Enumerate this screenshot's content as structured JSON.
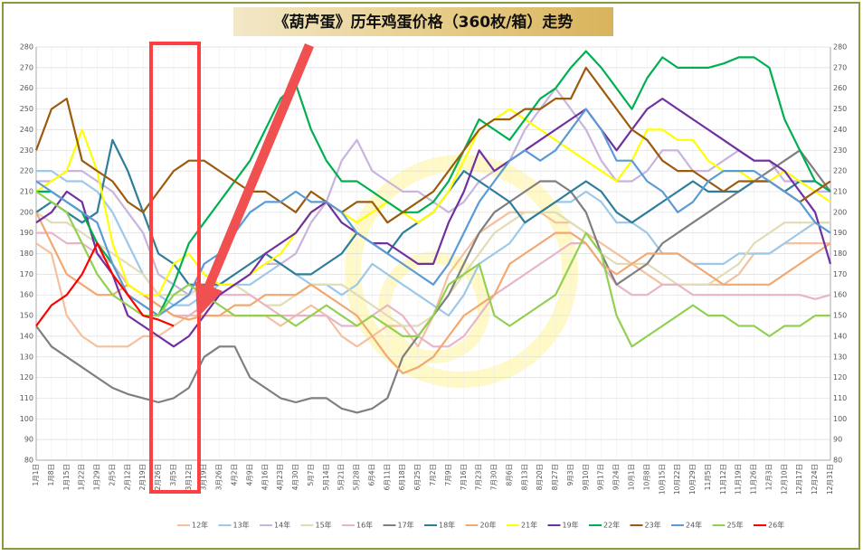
{
  "chart_data": {
    "type": "line",
    "title": "《葫芦蛋》历年鸡蛋价格（360枚/箱）走势",
    "categories": [
      "1月1日",
      "1月8日",
      "1月15日",
      "1月22日",
      "1月29日",
      "2月5日",
      "2月12日",
      "2月19日",
      "2月26日",
      "3月5日",
      "3月12日",
      "3月19日",
      "3月26日",
      "4月2日",
      "4月9日",
      "4月16日",
      "4月23日",
      "4月30日",
      "5月7日",
      "5月14日",
      "5月21日",
      "5月28日",
      "6月4日",
      "6月11日",
      "6月18日",
      "6月25日",
      "7月2日",
      "7月9日",
      "7月16日",
      "7月23日",
      "7月30日",
      "8月6日",
      "8月13日",
      "8月20日",
      "8月27日",
      "9月3日",
      "9月10日",
      "9月17日",
      "9月24日",
      "10月1日",
      "10月8日",
      "10月15日",
      "10月22日",
      "10月29日",
      "11月5日",
      "11月12日",
      "11月19日",
      "11月26日",
      "12月3日",
      "12月10日",
      "12月17日",
      "12月24日",
      "12月31日"
    ],
    "ylim": [
      80,
      280
    ],
    "yticks": [
      80,
      90,
      100,
      110,
      120,
      130,
      140,
      150,
      160,
      170,
      180,
      190,
      200,
      210,
      220,
      230,
      240,
      250,
      260,
      270,
      280
    ],
    "grid": true,
    "series": [
      {
        "name": "12年",
        "color": "#f4c09e",
        "values": [
          185,
          180,
          150,
          140,
          135,
          135,
          135,
          140,
          140,
          145,
          150,
          150,
          150,
          150,
          150,
          150,
          145,
          150,
          155,
          150,
          140,
          135,
          140,
          145,
          145,
          135,
          150,
          170,
          180,
          190,
          195,
          200,
          200,
          200,
          195,
          195,
          190,
          185,
          180,
          175,
          170,
          165,
          165,
          165,
          165,
          165,
          170,
          180,
          180,
          185,
          185,
          185,
          185
        ]
      },
      {
        "name": "13年",
        "color": "#9dc8e8",
        "values": [
          220,
          220,
          215,
          215,
          210,
          200,
          185,
          170,
          160,
          155,
          155,
          160,
          165,
          165,
          165,
          170,
          175,
          170,
          165,
          165,
          160,
          165,
          175,
          170,
          165,
          160,
          155,
          150,
          160,
          175,
          180,
          185,
          195,
          200,
          205,
          205,
          210,
          205,
          195,
          195,
          190,
          180,
          180,
          175,
          175,
          175,
          180,
          180,
          180,
          185,
          190,
          195,
          195
        ]
      },
      {
        "name": "14年",
        "color": "#c8b4dc",
        "values": [
          215,
          215,
          220,
          220,
          215,
          210,
          200,
          190,
          170,
          165,
          160,
          165,
          165,
          165,
          170,
          175,
          175,
          180,
          195,
          205,
          225,
          235,
          220,
          215,
          210,
          210,
          205,
          200,
          205,
          215,
          220,
          225,
          240,
          250,
          260,
          250,
          240,
          225,
          215,
          215,
          220,
          230,
          230,
          220,
          220,
          225,
          230,
          225,
          225,
          215,
          215,
          210,
          210
        ]
      },
      {
        "name": "15年",
        "color": "#e2dcb4",
        "values": [
          200,
          195,
          195,
          190,
          185,
          180,
          175,
          170,
          160,
          160,
          160,
          165,
          165,
          165,
          160,
          155,
          155,
          160,
          165,
          165,
          165,
          160,
          155,
          150,
          145,
          145,
          150,
          160,
          170,
          180,
          190,
          195,
          200,
          200,
          200,
          195,
          190,
          180,
          175,
          175,
          175,
          170,
          165,
          165,
          165,
          170,
          175,
          185,
          190,
          195,
          195,
          195,
          195
        ]
      },
      {
        "name": "16年",
        "color": "#e8b4c8",
        "values": [
          190,
          190,
          185,
          185,
          180,
          175,
          165,
          160,
          155,
          150,
          150,
          155,
          160,
          160,
          160,
          155,
          150,
          150,
          150,
          150,
          145,
          145,
          150,
          155,
          150,
          140,
          135,
          135,
          140,
          150,
          160,
          165,
          170,
          175,
          180,
          185,
          185,
          175,
          165,
          160,
          160,
          165,
          165,
          160,
          160,
          160,
          160,
          160,
          160,
          160,
          160,
          158,
          160
        ]
      },
      {
        "name": "17年",
        "color": "#7f7f7f",
        "values": [
          145,
          135,
          130,
          125,
          120,
          115,
          112,
          110,
          108,
          110,
          115,
          130,
          135,
          135,
          120,
          115,
          110,
          108,
          110,
          110,
          105,
          103,
          105,
          110,
          130,
          140,
          150,
          160,
          175,
          190,
          200,
          205,
          210,
          215,
          215,
          210,
          200,
          180,
          165,
          170,
          175,
          185,
          190,
          195,
          200,
          205,
          210,
          215,
          220,
          225,
          230,
          220,
          210
        ]
      },
      {
        "name": "18年",
        "color": "#2e7d9a",
        "values": [
          200,
          205,
          200,
          195,
          200,
          235,
          220,
          200,
          180,
          175,
          165,
          165,
          165,
          170,
          175,
          180,
          175,
          170,
          170,
          175,
          180,
          190,
          185,
          180,
          190,
          195,
          200,
          210,
          220,
          215,
          210,
          205,
          195,
          200,
          205,
          210,
          215,
          210,
          200,
          195,
          200,
          205,
          210,
          215,
          210,
          210,
          210,
          215,
          215,
          210,
          215,
          215,
          210
        ]
      },
      {
        "name": "20年",
        "color": "#f2a870",
        "values": [
          200,
          185,
          170,
          165,
          160,
          160,
          165,
          160,
          155,
          150,
          148,
          150,
          150,
          155,
          155,
          160,
          160,
          160,
          165,
          160,
          155,
          150,
          140,
          130,
          122,
          125,
          130,
          140,
          150,
          155,
          160,
          175,
          180,
          185,
          190,
          190,
          185,
          175,
          170,
          175,
          180,
          180,
          180,
          175,
          170,
          165,
          165,
          165,
          165,
          170,
          175,
          180,
          185
        ]
      },
      {
        "name": "21年",
        "color": "#ffff00",
        "values": [
          210,
          215,
          220,
          240,
          220,
          185,
          165,
          160,
          160,
          175,
          180,
          170,
          165,
          165,
          170,
          175,
          180,
          190,
          200,
          205,
          200,
          195,
          200,
          205,
          200,
          195,
          200,
          210,
          225,
          240,
          245,
          250,
          245,
          240,
          235,
          230,
          225,
          220,
          215,
          225,
          240,
          240,
          235,
          235,
          225,
          220,
          220,
          215,
          215,
          220,
          215,
          210,
          205
        ]
      },
      {
        "name": "19年",
        "color": "#7030a0",
        "values": [
          195,
          200,
          210,
          205,
          180,
          170,
          150,
          145,
          140,
          135,
          140,
          150,
          160,
          165,
          170,
          180,
          185,
          190,
          200,
          205,
          195,
          190,
          185,
          185,
          180,
          175,
          175,
          195,
          210,
          230,
          220,
          225,
          230,
          235,
          240,
          245,
          250,
          240,
          230,
          240,
          250,
          255,
          250,
          245,
          240,
          235,
          230,
          225,
          225,
          220,
          210,
          200,
          175
        ]
      },
      {
        "name": "22年",
        "color": "#00b050",
        "values": [
          210,
          210,
          205,
          200,
          185,
          175,
          160,
          155,
          150,
          165,
          185,
          195,
          205,
          215,
          225,
          240,
          255,
          262,
          240,
          225,
          215,
          215,
          210,
          205,
          200,
          200,
          205,
          215,
          230,
          245,
          240,
          235,
          245,
          255,
          260,
          270,
          278,
          270,
          260,
          250,
          265,
          275,
          270,
          270,
          270,
          272,
          275,
          275,
          270,
          245,
          230,
          215,
          210
        ]
      },
      {
        "name": "23年",
        "color": "#9c5a0c",
        "values": [
          230,
          250,
          255,
          225,
          220,
          215,
          205,
          200,
          210,
          220,
          225,
          225,
          220,
          215,
          210,
          210,
          205,
          200,
          210,
          205,
          200,
          205,
          205,
          195,
          200,
          205,
          210,
          220,
          230,
          240,
          245,
          245,
          250,
          250,
          255,
          255,
          270,
          260,
          250,
          240,
          235,
          225,
          220,
          220,
          215,
          210,
          215,
          215,
          215,
          210,
          205,
          210,
          215
        ]
      },
      {
        "name": "24年",
        "color": "#5b9bd5",
        "values": [
          215,
          210,
          205,
          200,
          195,
          175,
          160,
          155,
          150,
          155,
          160,
          175,
          180,
          190,
          200,
          205,
          205,
          210,
          205,
          205,
          200,
          190,
          185,
          180,
          175,
          170,
          165,
          175,
          190,
          205,
          215,
          225,
          230,
          225,
          230,
          240,
          250,
          240,
          225,
          225,
          215,
          210,
          200,
          205,
          215,
          220,
          220,
          220,
          215,
          210,
          205,
          195,
          190
        ]
      },
      {
        "name": "25年",
        "color": "#92d050",
        "values": [
          210,
          205,
          200,
          185,
          170,
          160,
          155,
          150,
          150,
          160,
          165,
          160,
          155,
          150,
          150,
          150,
          150,
          145,
          150,
          155,
          150,
          145,
          150,
          145,
          140,
          140,
          150,
          165,
          170,
          175,
          150,
          145,
          150,
          155,
          160,
          175,
          190,
          180,
          150,
          135,
          140,
          145,
          150,
          155,
          150,
          150,
          145,
          145,
          140,
          145,
          145,
          150,
          150
        ]
      },
      {
        "name": "26年",
        "color": "#ff0000",
        "values": [
          145,
          155,
          160,
          170,
          185,
          170,
          160,
          150,
          148,
          145,
          null,
          null,
          null,
          null,
          null,
          null,
          null,
          null,
          null,
          null,
          null,
          null,
          null,
          null,
          null,
          null,
          null,
          null,
          null,
          null,
          null,
          null,
          null,
          null,
          null,
          null,
          null,
          null,
          null,
          null,
          null,
          null,
          null,
          null,
          null,
          null,
          null,
          null,
          null,
          null,
          null,
          null,
          null
        ]
      }
    ]
  }
}
